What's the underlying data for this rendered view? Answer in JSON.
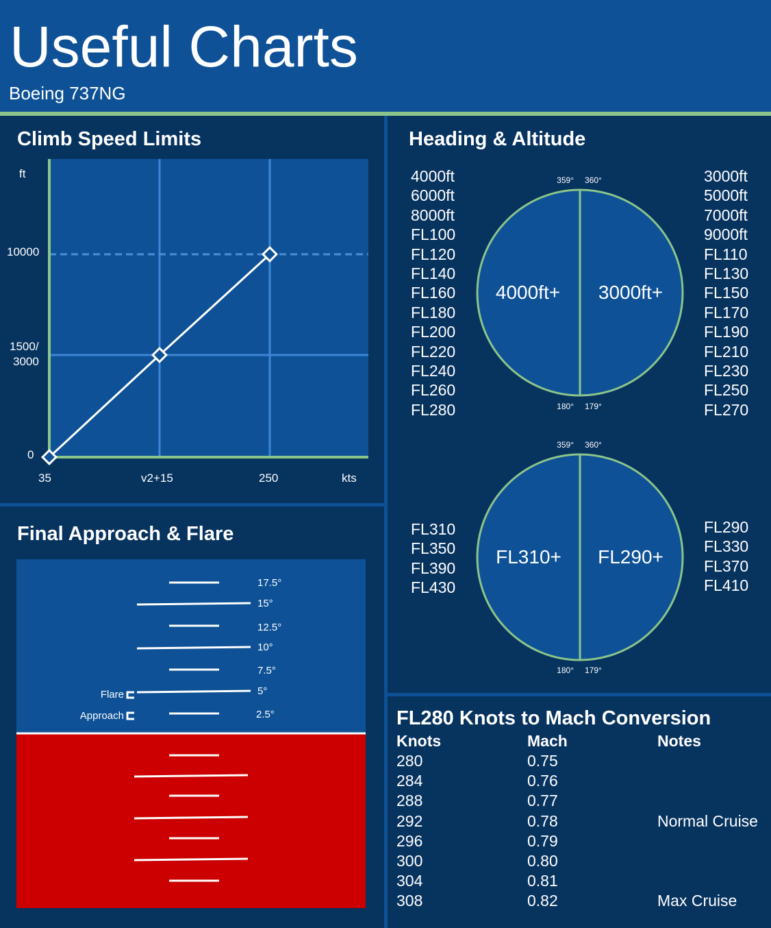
{
  "header": {
    "title": "Useful Charts",
    "subtitle": "Boeing 737NG"
  },
  "climb": {
    "title": "Climb Speed Limits",
    "y_unit": "ft",
    "x_unit": "kts",
    "y_ticks": [
      "10000",
      "1500/\n3000",
      "0"
    ],
    "x_ticks": [
      "35",
      "v2+15",
      "250"
    ]
  },
  "chart_data": {
    "type": "line",
    "title": "Climb Speed Limits",
    "xlabel": "kts",
    "ylabel": "ft",
    "categories": [
      "35",
      "v2+15",
      "250"
    ],
    "y_categories": [
      "0",
      "1500/3000",
      "10000"
    ],
    "points": [
      {
        "x": "35",
        "y": "0"
      },
      {
        "x": "v2+15",
        "y": "1500/3000"
      },
      {
        "x": "250",
        "y": "10000"
      }
    ],
    "grid": true
  },
  "heading": {
    "title": "Heading & Altitude",
    "circle1": {
      "left_label": "4000ft+",
      "right_label": "3000ft+",
      "top_left": "359°",
      "top_right": "360°",
      "bottom_left": "180°",
      "bottom_right": "179°",
      "left_list": [
        "4000ft",
        "6000ft",
        "8000ft",
        "FL100",
        "FL120",
        "FL140",
        "FL160",
        "FL180",
        "FL200",
        "FL220",
        "FL240",
        "FL260",
        "FL280"
      ],
      "right_list": [
        "3000ft",
        "5000ft",
        "7000ft",
        "9000ft",
        "FL110",
        "FL130",
        "FL150",
        "FL170",
        "FL190",
        "FL210",
        "FL230",
        "FL250",
        "FL270"
      ]
    },
    "circle2": {
      "left_label": "FL310+",
      "right_label": "FL290+",
      "top_left": "359°",
      "top_right": "360°",
      "bottom_left": "180°",
      "bottom_right": "179°",
      "left_list": [
        "FL310",
        "FL350",
        "FL390",
        "FL430"
      ],
      "right_list": [
        "FL290",
        "FL330",
        "FL370",
        "FL410"
      ]
    }
  },
  "approach": {
    "title": "Final Approach & Flare",
    "pitch_labels": [
      "17.5°",
      "15°",
      "12.5°",
      "10°",
      "7.5°",
      "5°",
      "2.5°"
    ],
    "flare_label": "Flare",
    "approach_label": "Approach",
    "sky_color": "#0e5196",
    "ground_color": "#cc0000"
  },
  "mach": {
    "title": "FL280 Knots to Mach Conversion",
    "headers": [
      "Knots",
      "Mach",
      "Notes"
    ],
    "rows": [
      [
        "280",
        "0.75",
        ""
      ],
      [
        "284",
        "0.76",
        ""
      ],
      [
        "288",
        "0.77",
        ""
      ],
      [
        "292",
        "0.78",
        "Normal Cruise"
      ],
      [
        "296",
        "0.79",
        ""
      ],
      [
        "300",
        "0.80",
        ""
      ],
      [
        "304",
        "0.81",
        ""
      ],
      [
        "308",
        "0.82",
        "Max Cruise"
      ]
    ]
  }
}
